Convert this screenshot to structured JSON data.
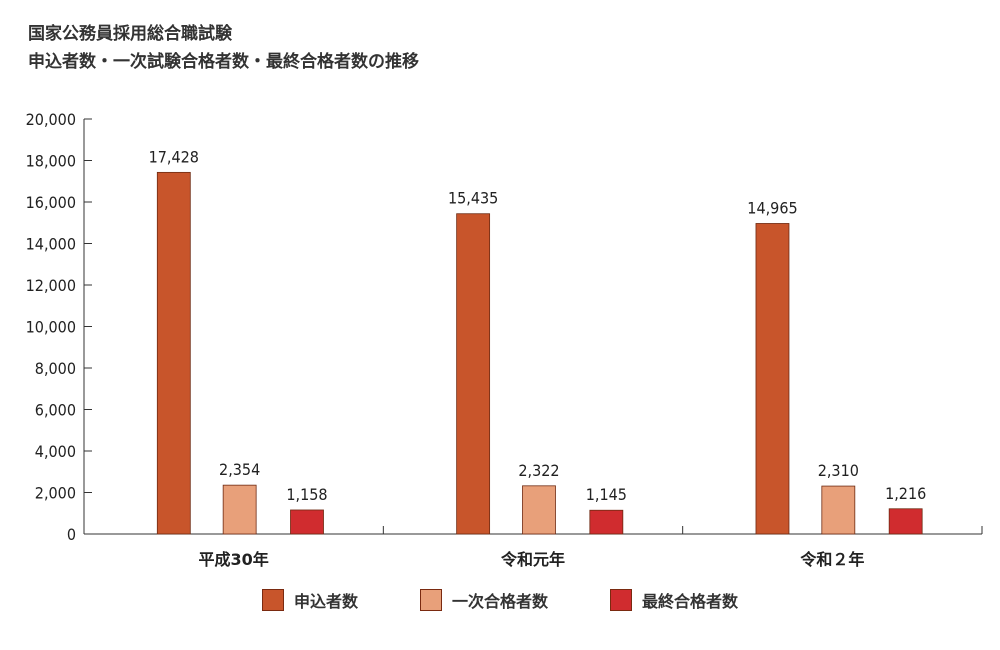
{
  "chart_data": {
    "type": "bar",
    "title": "国家公務員採用総合職試験",
    "subtitle": "申込者数・一次試験合格者数・最終合格者数の推移",
    "categories": [
      "平成30年",
      "令和元年",
      "令和２年"
    ],
    "series": [
      {
        "name": "申込者数",
        "values": [
          17428,
          15435,
          14965
        ],
        "labels": [
          "17,428",
          "15,435",
          "14,965"
        ],
        "color": "#c8552b"
      },
      {
        "name": "一次合格者数",
        "values": [
          2354,
          2322,
          2310
        ],
        "labels": [
          "2,354",
          "2,322",
          "2,310"
        ],
        "color": "#e8a07a"
      },
      {
        "name": "最終合格者数",
        "values": [
          1158,
          1145,
          1216
        ],
        "labels": [
          "1,158",
          "1,145",
          "1,216"
        ],
        "color": "#d02c2f"
      }
    ],
    "yticks": [
      "0",
      "2,000",
      "4,000",
      "6,000",
      "8,000",
      "10,000",
      "12,000",
      "14,000",
      "16,000",
      "18,000",
      "20,000"
    ],
    "ylim": [
      0,
      20000
    ],
    "xlabel": "",
    "ylabel": "",
    "grid": false,
    "legend_position": "bottom"
  }
}
